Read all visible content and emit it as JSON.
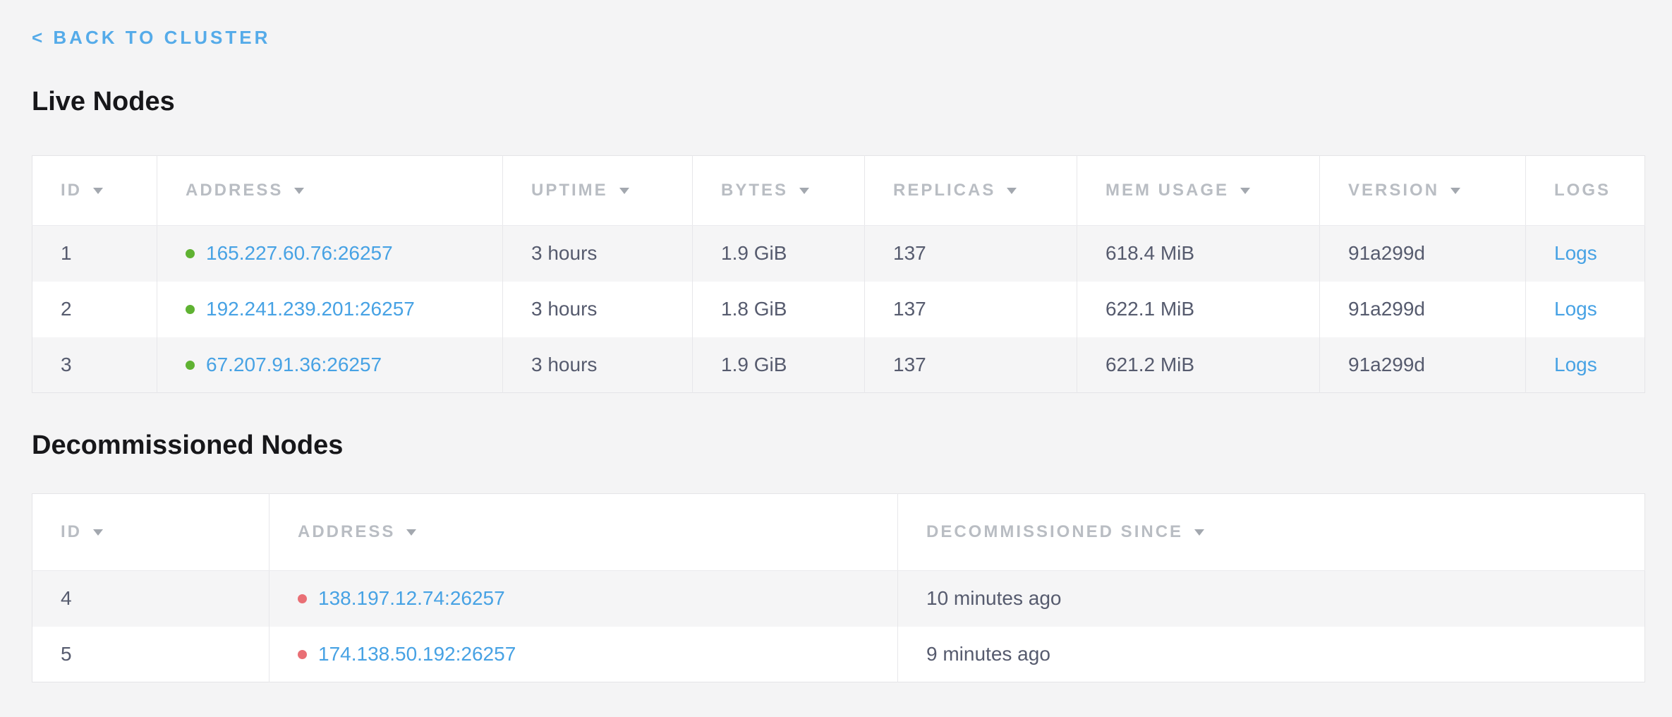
{
  "back_link": {
    "label": "< BACK TO CLUSTER"
  },
  "colors": {
    "link_blue": "#47a2e4",
    "back_link_blue": "#55abe9",
    "live_dot_green": "#5fb232",
    "decommissioned_dot_red": "#e96f75",
    "page_background": "#f4f4f5",
    "striped_row": "#f5f5f6"
  },
  "live_nodes": {
    "title": "Live Nodes",
    "columns": [
      {
        "label": "ID",
        "sortable": true
      },
      {
        "label": "ADDRESS",
        "sortable": true
      },
      {
        "label": "UPTIME",
        "sortable": true
      },
      {
        "label": "BYTES",
        "sortable": true
      },
      {
        "label": "REPLICAS",
        "sortable": true
      },
      {
        "label": "MEM USAGE",
        "sortable": true
      },
      {
        "label": "VERSION",
        "sortable": true
      },
      {
        "label": "LOGS",
        "sortable": false
      }
    ],
    "rows": [
      {
        "id": "1",
        "status": "live",
        "address": "165.227.60.76:26257",
        "uptime": "3 hours",
        "bytes": "1.9 GiB",
        "replicas": "137",
        "mem_usage": "618.4 MiB",
        "version": "91a299d",
        "logs_label": "Logs"
      },
      {
        "id": "2",
        "status": "live",
        "address": "192.241.239.201:26257",
        "uptime": "3 hours",
        "bytes": "1.8 GiB",
        "replicas": "137",
        "mem_usage": "622.1 MiB",
        "version": "91a299d",
        "logs_label": "Logs"
      },
      {
        "id": "3",
        "status": "live",
        "address": "67.207.91.36:26257",
        "uptime": "3 hours",
        "bytes": "1.9 GiB",
        "replicas": "137",
        "mem_usage": "621.2 MiB",
        "version": "91a299d",
        "logs_label": "Logs"
      }
    ]
  },
  "decommissioned_nodes": {
    "title": "Decommissioned Nodes",
    "columns": [
      {
        "label": "ID",
        "sortable": true
      },
      {
        "label": "ADDRESS",
        "sortable": true
      },
      {
        "label": "DECOMMISSIONED SINCE",
        "sortable": true
      }
    ],
    "rows": [
      {
        "id": "4",
        "status": "decommissioned",
        "address": "138.197.12.74:26257",
        "since": "10 minutes ago"
      },
      {
        "id": "5",
        "status": "decommissioned",
        "address": "174.138.50.192:26257",
        "since": "9 minutes ago"
      }
    ]
  }
}
